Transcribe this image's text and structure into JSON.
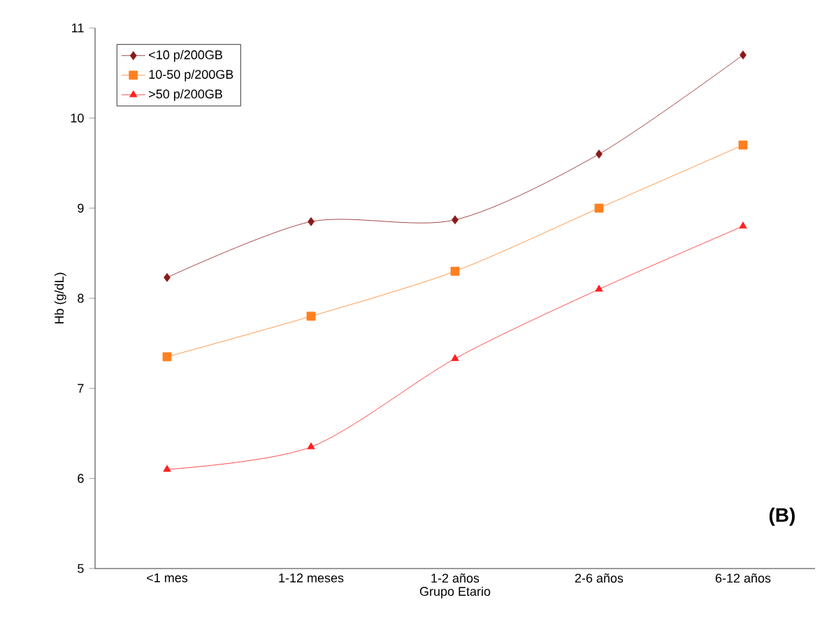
{
  "chart_data": {
    "type": "line",
    "xlabel": "Grupo Etario",
    "ylabel": "Hb (g/dL)",
    "categories": [
      "<1 mes",
      "1-12 meses",
      "1-2 años",
      "2-6 años",
      "6-12 años"
    ],
    "series": [
      {
        "name": "<10 p/200GB",
        "color": "#8b1a1a",
        "marker": "diamond",
        "values": [
          8.23,
          8.85,
          8.87,
          9.6,
          10.7
        ]
      },
      {
        "name": "10-50 p/200GB",
        "color": "#ff8020",
        "marker": "square",
        "values": [
          7.35,
          7.8,
          8.3,
          9.0,
          9.7
        ]
      },
      {
        "name": ">50 p/200GB",
        "color": "#ff2020",
        "marker": "triangle",
        "values": [
          6.1,
          6.35,
          7.33,
          8.1,
          8.8
        ]
      }
    ],
    "ylim": [
      5,
      11
    ],
    "yticks": [
      5,
      6,
      7,
      8,
      9,
      10,
      11
    ],
    "grid": false,
    "legend": "top left",
    "line_style": "solid",
    "annotations": [
      "**(B)**"
    ]
  }
}
